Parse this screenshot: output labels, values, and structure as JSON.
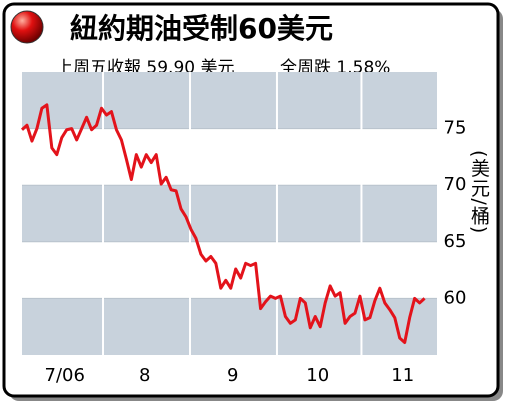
{
  "chart_data": {
    "type": "line",
    "title": "紐約期油受制60美元",
    "subtitle": "上周五收報 59.90 美元",
    "annotation": "全周跌 1.58%",
    "y_label": "(美元/桶)",
    "values": [
      74.9,
      75.3,
      73.9,
      75,
      76.8,
      77.1,
      73.3,
      72.7,
      74.2,
      74.9,
      75,
      74,
      75,
      76,
      74.9,
      75.3,
      76.8,
      76.2,
      76.5,
      74.9,
      74,
      72.3,
      70.5,
      72.7,
      71.6,
      72.7,
      72,
      72.7,
      70.1,
      70.7,
      69.6,
      69.5,
      67.9,
      67.2,
      66.1,
      65.3,
      63.9,
      63.3,
      63.7,
      63.1,
      60.9,
      61.6,
      60.9,
      62.6,
      61.8,
      63.1,
      62.9,
      63.1,
      59.1,
      59.7,
      60.2,
      60,
      60.2,
      58.4,
      57.8,
      58.1,
      60,
      59.6,
      57.4,
      58.4,
      57.5,
      59.6,
      61.1,
      60.2,
      60.5,
      57.8,
      58.4,
      58.7,
      60.2,
      58.1,
      58.3,
      59.8,
      60.9,
      59.6,
      59,
      58.3,
      56.5,
      56.1,
      58.3,
      60,
      59.6,
      60
    ],
    "color": "#e3131b",
    "xlim": [
      0,
      83.5
    ],
    "xticks": [
      {
        "value": 8.6,
        "label": "7/06"
      },
      {
        "value": 24.7,
        "label": "8"
      },
      {
        "value": 42.4,
        "label": "9"
      },
      {
        "value": 59.5,
        "label": "10"
      },
      {
        "value": 76.6,
        "label": "11"
      }
    ],
    "xgrid": [
      16.3,
      33.8,
      51.3,
      68.3
    ],
    "ylim": [
      55,
      80
    ],
    "yticks": [
      60,
      65,
      70,
      75
    ],
    "band_color": "#c8d2dc"
  }
}
